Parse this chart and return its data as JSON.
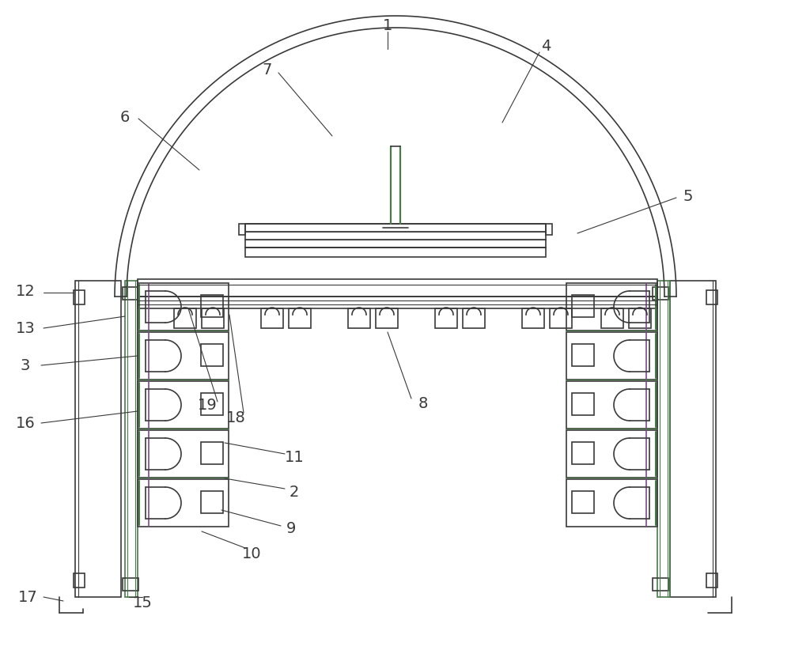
{
  "bg_color": "#ffffff",
  "line_color": "#3a3a3a",
  "green_color": "#4a7a4a",
  "purple_color": "#7a4a8a",
  "fig_width": 10.0,
  "fig_height": 8.22
}
